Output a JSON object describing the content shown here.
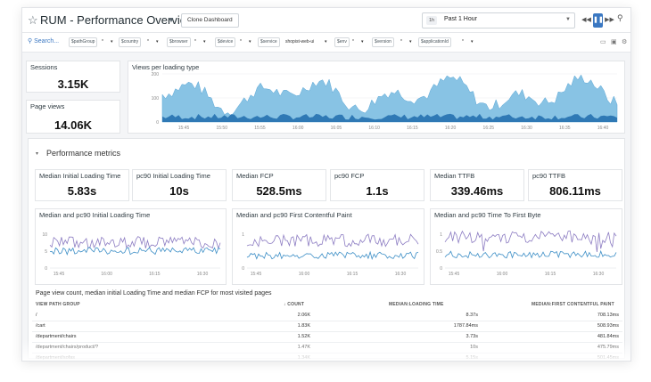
{
  "header": {
    "title": "RUM - Performance Overview",
    "clone_label": "Clone Dashboard",
    "time_badge": "1h",
    "time_range": "Past 1 Hour"
  },
  "filters": {
    "search_label": "Search...",
    "chips": [
      {
        "label": "$pathGroup",
        "value": "*"
      },
      {
        "label": "$country",
        "value": "*"
      },
      {
        "label": "$browser",
        "value": "*"
      },
      {
        "label": "$device",
        "value": "*"
      },
      {
        "label": "$service",
        "value": "shopist-web-ui"
      },
      {
        "label": "$env",
        "value": "*"
      },
      {
        "label": "$version",
        "value": "*"
      },
      {
        "label": "$applicationId",
        "value": "*"
      }
    ]
  },
  "sessions": {
    "title": "Sessions",
    "value": "3.15K"
  },
  "page_views": {
    "title": "Page views",
    "value": "14.06K"
  },
  "views_chart": {
    "title": "Views per loading type",
    "y_ticks": [
      "200",
      "100",
      "0"
    ],
    "x_ticks": [
      "15:45",
      "15:50",
      "15:55",
      "16:00",
      "16:05",
      "16:10",
      "16:15",
      "16:20",
      "16:25",
      "16:30",
      "16:35",
      "16:40"
    ]
  },
  "section": {
    "title": "Performance metrics"
  },
  "metrics": [
    {
      "title": "Median Initial Loading Time",
      "value": "5.83s"
    },
    {
      "title": "pc90 Initial Loading Time",
      "value": "10s"
    },
    {
      "title": "Median FCP",
      "value": "528.5ms"
    },
    {
      "title": "pc90 FCP",
      "value": "1.1s"
    },
    {
      "title": "Median TTFB",
      "value": "339.46ms"
    },
    {
      "title": "pc90 TTFB",
      "value": "806.11ms"
    }
  ],
  "timeseries": [
    {
      "title": "Median and pc90 Initial Loading Time",
      "y_ticks": [
        "10",
        "5",
        "0"
      ],
      "x_ticks": [
        "15:45",
        "16:00",
        "16:15",
        "16:30"
      ]
    },
    {
      "title": "Median and pc90 First Contentful Paint",
      "y_ticks": [
        "1",
        "0"
      ],
      "x_ticks": [
        "15:45",
        "16:00",
        "16:15",
        "16:30"
      ]
    },
    {
      "title": "Median and pc90 Time To First Byte",
      "y_ticks": [
        "1",
        "0.5",
        "0"
      ],
      "x_ticks": [
        "15:45",
        "16:00",
        "16:15",
        "16:30"
      ]
    }
  ],
  "table": {
    "title": "Page view count, median initial Loading Time and median FCP for most visited pages",
    "columns": [
      "VIEW PATH GROUP",
      "COUNT",
      "MEDIAN:LOADING TIME",
      "MEDIAN:FIRST CONTENTFUL PAINT"
    ],
    "rows": [
      {
        "path": "/",
        "count": "2.06K",
        "loading": "8.37s",
        "fcp": "708.13ms"
      },
      {
        "path": "/cart",
        "count": "1.83K",
        "loading": "1787.84ms",
        "fcp": "508.93ms"
      },
      {
        "path": "/department/chairs",
        "count": "1.52K",
        "loading": "3.73s",
        "fcp": "481.84ms"
      },
      {
        "path": "/department/chairs/product/?",
        "count": "1.47K",
        "loading": "10s",
        "fcp": "475.79ms"
      },
      {
        "path": "/department/sofas",
        "count": "1.34K",
        "loading": "5.15s",
        "fcp": "501.45ms"
      }
    ]
  },
  "colors": {
    "area_main": "#88c3e4",
    "area_dark": "#2f79b5",
    "line_purple": "#8c7cc2",
    "line_blue": "#3c8ec6",
    "accent": "#3b78c2"
  }
}
